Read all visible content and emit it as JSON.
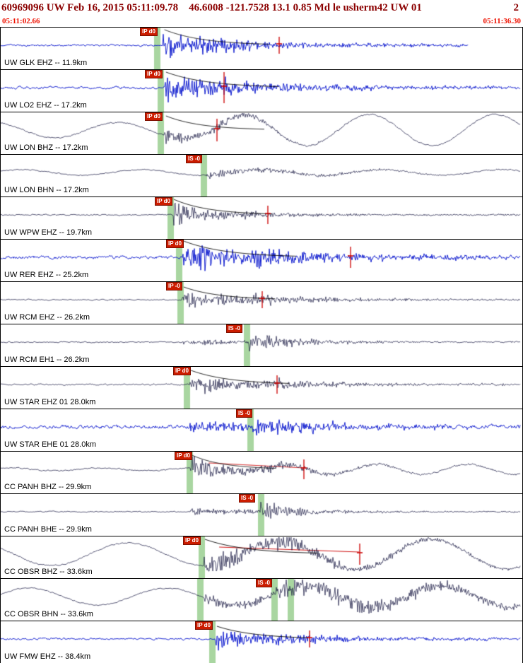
{
  "header": {
    "event_line": "60969096 UW Feb 16, 2015 05:11:09.78    46.6008 -121.7528 13.1 0.85 Md le usherm42 UW 01",
    "page_indicator": "2",
    "time_left": "05:11:02.66",
    "time_right": "05:11:36.30"
  },
  "colors": {
    "header_text": "#8b0000",
    "time_text": "#ee1100",
    "trace_blue": "#0010cc",
    "trace_dark": "#12123e",
    "pick_flag_bg": "#cc1c00",
    "pick_flag_text": "#ffffff",
    "green_band": "rgba(148,204,138,0.8)",
    "red_marker": "#cc0000",
    "coda_curve": "#000000"
  },
  "traces": [
    {
      "label": "UW GLK EHZ -- 11.9km",
      "color": "blue",
      "seed": 11,
      "picks": [
        {
          "label": "IP d0",
          "x": 0.268
        }
      ],
      "bands": [
        0.295
      ],
      "spike": 0.536,
      "spikeH": 12,
      "wave": {
        "noise": 1.1,
        "p": 0.312,
        "pAmp": 13,
        "pDecay": 90,
        "coda": 2.4,
        "s": 0.37,
        "sAmp": 5,
        "sDecay": 140,
        "end": 0.9
      },
      "coda_curve": {
        "a0": 22,
        "tau": 55,
        "len": 150
      }
    },
    {
      "label": "UW LO2 EHZ -- 17.2km",
      "color": "blue",
      "seed": 22,
      "picks": [
        {
          "label": "IP d0",
          "x": 0.277
        }
      ],
      "bands": [
        0.302
      ],
      "spike": 0.43,
      "spikeH": 22,
      "wave": {
        "noise": 1.4,
        "p": 0.315,
        "pAmp": 15,
        "pDecay": 70,
        "coda": 3.2,
        "s": 0.41,
        "sAmp": 7,
        "sDecay": 160
      },
      "coda_curve": {
        "a0": 22,
        "tau": 60,
        "len": 160
      }
    },
    {
      "label": "UW LON BHZ -- 17.2km",
      "color": "dark",
      "seed": 33,
      "picks": [
        {
          "label": "IP d0",
          "x": 0.277
        }
      ],
      "bands": [
        0.302
      ],
      "spike": 0.416,
      "spikeH": 16,
      "wave": {
        "noise": 0.7,
        "lpAmp": 11,
        "lpGrow": 22,
        "lpPeriod": 178,
        "lpPhase": 2.0,
        "p": 0.315,
        "pAmp": 10,
        "pDecay": 55,
        "s": 0.41,
        "sAmp": 5,
        "sDecay": 90
      },
      "coda_curve": {
        "a0": 20,
        "tau": 50,
        "len": 140
      }
    },
    {
      "label": "UW LON BHN -- 17.2km",
      "color": "dark",
      "seed": 44,
      "picks": [
        {
          "label": "IS -0",
          "x": 0.356
        }
      ],
      "bands": [
        0.385
      ],
      "wave": {
        "noise": 0.6,
        "lpAmp": 4,
        "lpPeriod": 170,
        "lpPhase": 0.5,
        "s": 0.393,
        "sAmp": 5,
        "sDecay": 160
      }
    },
    {
      "label": "UW WPW EHZ -- 19.7km",
      "color": "dark",
      "seed": 55,
      "picks": [
        {
          "label": "IP d0",
          "x": 0.296
        }
      ],
      "bands": [
        0.32
      ],
      "spike": 0.514,
      "spikeH": 13,
      "wave": {
        "noise": 0.7,
        "p": 0.33,
        "pAmp": 15,
        "pDecay": 45,
        "coda": 1.6,
        "s": 0.42,
        "sAmp": 5,
        "sDecay": 90
      },
      "coda_curve": {
        "a0": 22,
        "tau": 50,
        "len": 140
      }
    },
    {
      "label": "UW RER EHZ -- 25.2km",
      "color": "blue",
      "seed": 66,
      "picks": [
        {
          "label": "IP d0",
          "x": 0.318
        }
      ],
      "bands": [
        0.337
      ],
      "spike": 0.672,
      "spikeH": 15,
      "wave": {
        "noise": 1.7,
        "p": 0.349,
        "pAmp": 20,
        "pDecay": 60,
        "coda": 4.0,
        "s": 0.465,
        "sAmp": 11,
        "sDecay": 120
      },
      "coda_curve": {
        "a0": 23,
        "tau": 60,
        "len": 160
      }
    },
    {
      "label": "UW RCM EHZ -- 26.2km",
      "color": "dark",
      "seed": 77,
      "picks": [
        {
          "label": "IP -0",
          "x": 0.318
        }
      ],
      "bands": [
        0.34
      ],
      "spike": 0.503,
      "spikeH": 12,
      "wave": {
        "noise": 0.7,
        "p": 0.349,
        "pAmp": 10,
        "pDecay": 70,
        "coda": 1.8,
        "s": 0.475,
        "sAmp": 6,
        "sDecay": 110
      },
      "coda_curve": {
        "a0": 18,
        "tau": 50,
        "len": 130
      }
    },
    {
      "label": "UW RCM EH1 -- 26.2km",
      "color": "dark",
      "seed": 88,
      "picks": [
        {
          "label": "IS -0",
          "x": 0.434
        }
      ],
      "bands": [
        0.468
      ],
      "wave": {
        "noise": 0.7,
        "p": 0.349,
        "pAmp": 3,
        "pDecay": 120,
        "coda": 1.0,
        "s": 0.476,
        "sAmp": 12,
        "sDecay": 70
      }
    },
    {
      "label": "UW STAR EHZ 01 28.0km",
      "color": "dark",
      "seed": 99,
      "picks": [
        {
          "label": "IP d0",
          "x": 0.331
        }
      ],
      "bands": [
        0.352
      ],
      "spike": 0.531,
      "spikeH": 13,
      "wave": {
        "noise": 0.8,
        "p": 0.363,
        "pAmp": 13,
        "pDecay": 65,
        "coda": 1.8,
        "s": 0.49,
        "sAmp": 7,
        "sDecay": 110
      },
      "coda_curve": {
        "a0": 20,
        "tau": 55,
        "len": 140
      }
    },
    {
      "label": "UW STAR EHE 01 28.0km",
      "color": "blue",
      "seed": 110,
      "picks": [
        {
          "label": "IS -0",
          "x": 0.452
        }
      ],
      "bands": [
        0.474
      ],
      "wave": {
        "noise": 2.0,
        "p": 0.363,
        "pAmp": 4,
        "pDecay": 100,
        "coda": 2.5,
        "s": 0.483,
        "sAmp": 10,
        "sDecay": 130
      }
    },
    {
      "label": "CC PANH BHZ -- 29.9km",
      "color": "dark",
      "seed": 121,
      "picks": [
        {
          "label": "IP d0",
          "x": 0.334
        }
      ],
      "bands": [
        0.357
      ],
      "spike": 0.583,
      "spikeH": 14,
      "wave": {
        "noise": 0.7,
        "lpAmp": 2,
        "lpGrow": 7,
        "lpPeriod": 130,
        "lpPhase": 1.0,
        "p": 0.365,
        "pAmp": 14,
        "pDecay": 50,
        "coda": 1.5,
        "s": 0.5,
        "sAmp": 5,
        "sDecay": 100
      },
      "coda_curve": {
        "a0": 20,
        "tau": 45,
        "len": 120
      },
      "red_coda": {
        "from": 0.4,
        "to": 0.583,
        "a0": 9,
        "a1": 2
      }
    },
    {
      "label": "CC PANH BHE -- 29.9km",
      "color": "dark",
      "seed": 132,
      "picks": [
        {
          "label": "IS -0",
          "x": 0.458
        }
      ],
      "bands": [
        0.494
      ],
      "wave": {
        "noise": 0.6,
        "p": 0.365,
        "pAmp": 2.5,
        "pDecay": 150,
        "s": 0.499,
        "sAmp": 16,
        "sDecay": 45,
        "coda": 1.2
      }
    },
    {
      "label": "CC OBSR BHZ -- 33.6km",
      "color": "dark",
      "seed": 143,
      "picks": [
        {
          "label": "IP d0",
          "x": 0.35
        }
      ],
      "bands": [
        0.381
      ],
      "spike": 0.69,
      "spikeH": 15,
      "wave": {
        "noise": 0.7,
        "lpAmp": 16,
        "lpGrow": 21,
        "lpPeriod": 215,
        "lpPhase": 2.6,
        "p": 0.39,
        "pAmp": 13,
        "pDecay": 100,
        "coda": 2.5,
        "s": 0.53,
        "sAmp": 9,
        "sDecay": 140
      },
      "coda_curve": {
        "a0": 21,
        "tau": 60,
        "len": 160
      },
      "red_coda": {
        "from": 0.42,
        "to": 0.69,
        "a0": 10,
        "a1": 3
      }
    },
    {
      "label": "CC OBSR BHN -- 33.6km",
      "color": "dark",
      "seed": 154,
      "picks": [
        {
          "label": "IS -0",
          "x": 0.49
        }
      ],
      "bands": [
        0.378,
        0.521,
        0.552
      ],
      "wave": {
        "noise": 0.6,
        "lpAmp": 12,
        "lpGrow": 15,
        "lpPeriod": 195,
        "lpPhase": 0.3,
        "p": 0.39,
        "pAmp": 3,
        "pDecay": 200,
        "s": 0.528,
        "sAmp": 12,
        "sDecay": 280,
        "coda": 3
      }
    },
    {
      "label": "UW FMW EHZ -- 38.4km",
      "color": "blue",
      "seed": 165,
      "picks": [
        {
          "label": "IP d0",
          "x": 0.373
        }
      ],
      "bands": [
        0.401
      ],
      "spike": 0.594,
      "spikeH": 12,
      "wave": {
        "noise": 1.1,
        "p": 0.413,
        "pAmp": 11,
        "pDecay": 80,
        "coda": 2.2,
        "s": 0.52,
        "sAmp": 5,
        "sDecay": 120
      },
      "coda_curve": {
        "a0": 18,
        "tau": 55,
        "len": 130
      }
    }
  ]
}
